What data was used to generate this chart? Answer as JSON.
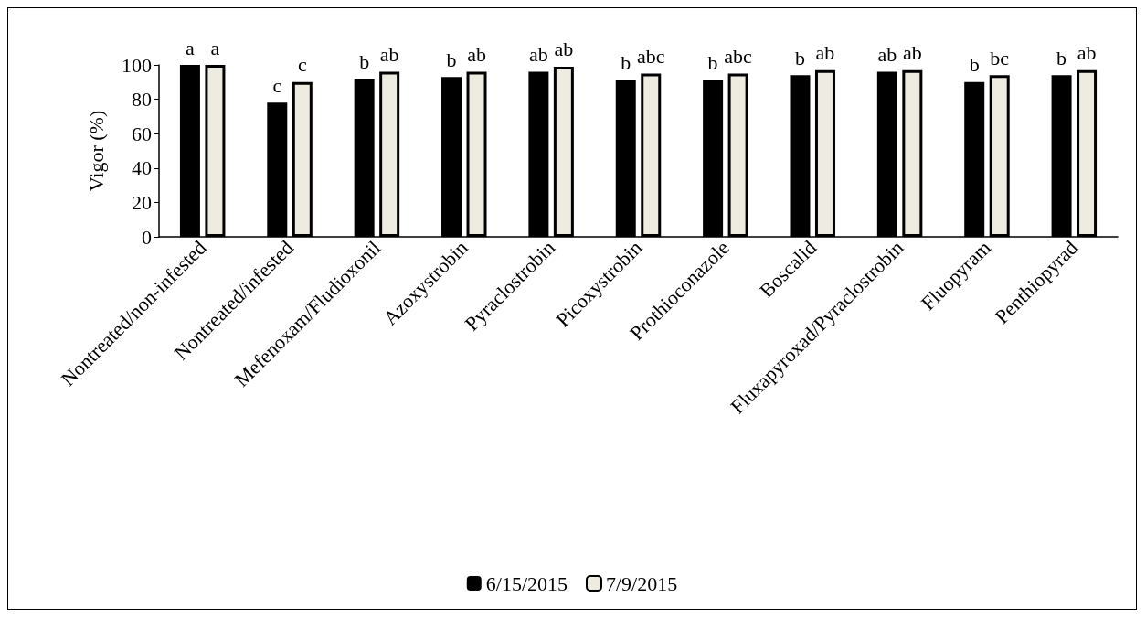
{
  "chart_data": {
    "type": "bar",
    "ylabel": "Vigor (%)",
    "categories": [
      "Nontreated/non-infested",
      "Nontreated/infested",
      "Mefenoxam/Fludioxonil",
      "Azoxystrobin",
      "Pyraclostrobin",
      "Picoxystrobin",
      "Prothioconazole",
      "Boscalid",
      "Fluxapyroxad/Pyraclostrobin",
      "Fluopyram",
      "Penthiopyrad"
    ],
    "series": [
      {
        "name": "6/15/2015",
        "color": "#000000",
        "values": [
          100,
          78,
          92,
          93,
          96,
          91,
          91,
          94,
          96,
          90,
          94
        ],
        "value_labels": [
          "a",
          "c",
          "b",
          "b",
          "ab",
          "b",
          "b",
          "b",
          "ab",
          "b",
          "b"
        ]
      },
      {
        "name": "7/9/2015",
        "color": "#eeebe0",
        "values": [
          100,
          90,
          96,
          96,
          99,
          95,
          95,
          97,
          97,
          94,
          97
        ],
        "value_labels": [
          "a",
          "c",
          "ab",
          "ab",
          "ab",
          "abc",
          "abc",
          "ab",
          "ab",
          "bc",
          "ab"
        ]
      }
    ],
    "ylim": [
      0,
      100
    ],
    "yticks": [
      0,
      20,
      40,
      60,
      80,
      100
    ],
    "grid": false,
    "legend": "bottom"
  }
}
